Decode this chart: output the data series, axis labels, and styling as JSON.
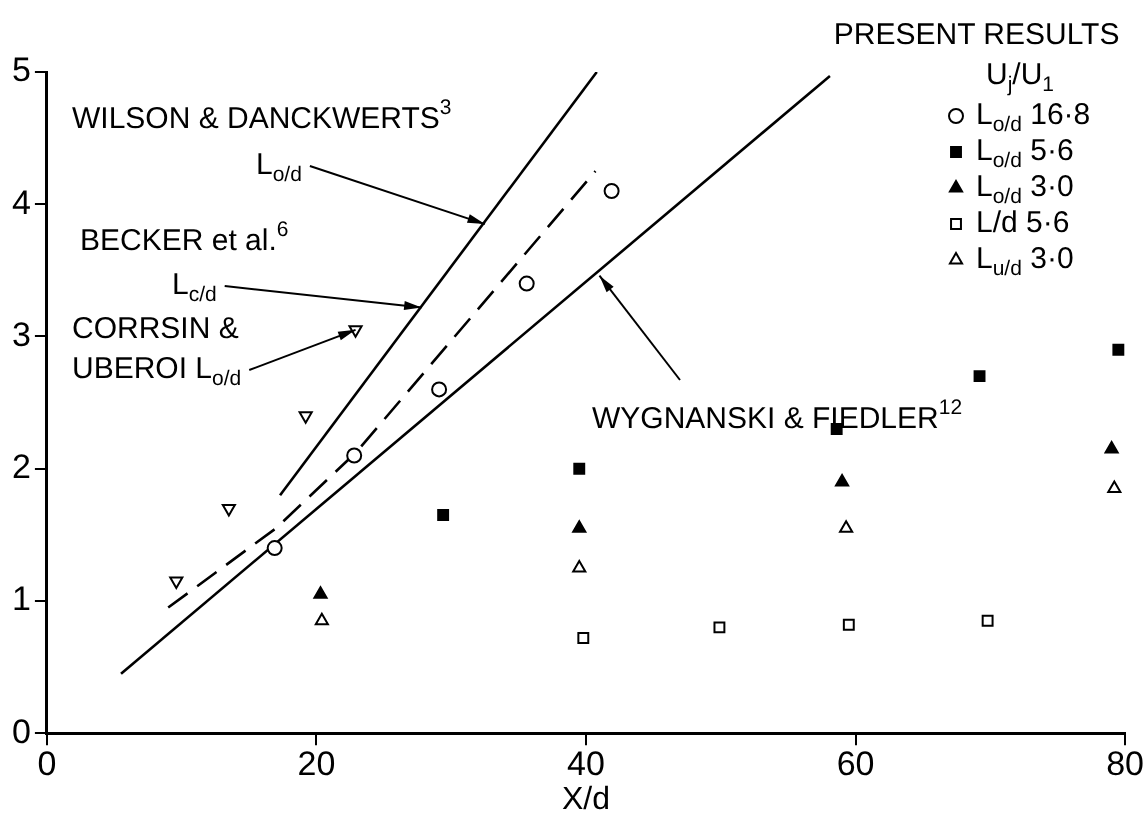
{
  "chart_data": {
    "type": "scatter",
    "xlabel": "X/d",
    "legend_title": "PRESENT RESULTS\nU$_{j}$/U$_{1}$",
    "legend": "top right",
    "grid": false,
    "xlim": [
      0,
      80
    ],
    "xticks": [
      0,
      20,
      40,
      60,
      80
    ],
    "ylim": [
      0,
      5
    ],
    "yticks": [
      0,
      1,
      2,
      3,
      4,
      5
    ],
    "series": [
      {
        "name": "L$_{o/d}$ 16·8",
        "color": "#000000",
        "marker": "circle",
        "x": [
          16.9,
          22.8,
          29.1,
          35.6,
          41.9
        ],
        "values": [
          1.4,
          2.1,
          2.6,
          3.4,
          4.1
        ]
      },
      {
        "name": "L$_{o/d}$ 5·6",
        "color": "#000000",
        "marker": "square",
        "x": [
          29.4,
          39.5,
          58.6,
          69.2,
          79.5
        ],
        "values": [
          1.65,
          2.0,
          2.3,
          2.7,
          2.9
        ]
      },
      {
        "name": "L$_{o/d}$ 3·0",
        "color": "#000000",
        "marker": "triangle",
        "x": [
          20.3,
          39.5,
          59.0,
          79.0
        ],
        "values": [
          1.05,
          1.55,
          1.9,
          2.15
        ]
      },
      {
        "name": "L/d 5·6",
        "color": "#000000",
        "marker": "square",
        "x": [
          39.8,
          49.9,
          59.5,
          69.8
        ],
        "values": [
          0.72,
          0.8,
          0.82,
          0.85
        ]
      },
      {
        "name": "L$_{u/d}$ 3·0",
        "color": "#000000",
        "marker": "triangle",
        "x": [
          20.4,
          39.5,
          59.3,
          79.2
        ],
        "values": [
          0.85,
          1.25,
          1.55,
          1.85
        ]
      },
      {
        "color": "#000000",
        "marker": "triangle",
        "x": [
          9.6,
          13.5,
          19.2,
          22.9
        ],
        "values": [
          1.15,
          1.7,
          2.4,
          3.05
        ]
      },
      {
        "type": "line",
        "color": "#000000",
        "marker": "none",
        "line_style": "solid",
        "x": [
          17.3,
          40.8
        ],
        "values": [
          1.8,
          5.0
        ]
      },
      {
        "type": "line",
        "color": "#000000",
        "marker": "none",
        "line_style": "dashed",
        "x": [
          9,
          17,
          23,
          40.7
        ],
        "values": [
          0.95,
          1.55,
          2.13,
          4.25
        ]
      },
      {
        "type": "line",
        "color": "#000000",
        "marker": "none",
        "line_style": "solid",
        "x": [
          5.5,
          58.1
        ],
        "values": [
          0.45,
          4.97
        ]
      }
    ],
    "annotations": [
      "WILSON & DANCKWERTS$^{3}$",
      {
        "text": "L$_{o/d}$",
        "x": 32.5,
        "y": 3.85
      },
      "BECKER et al.$^{6}$",
      {
        "text": "L$_{c/d}$",
        "x": 27.8,
        "y": 3.22
      },
      "CORRSIN &",
      {
        "text": "UBEROI L$_{o/d}$",
        "x": 22.9,
        "y": 3.05
      },
      {
        "text": "WYGNANSKI & FIEDLER$^{12}$",
        "x": 41,
        "y": 3.46
      }
    ]
  }
}
